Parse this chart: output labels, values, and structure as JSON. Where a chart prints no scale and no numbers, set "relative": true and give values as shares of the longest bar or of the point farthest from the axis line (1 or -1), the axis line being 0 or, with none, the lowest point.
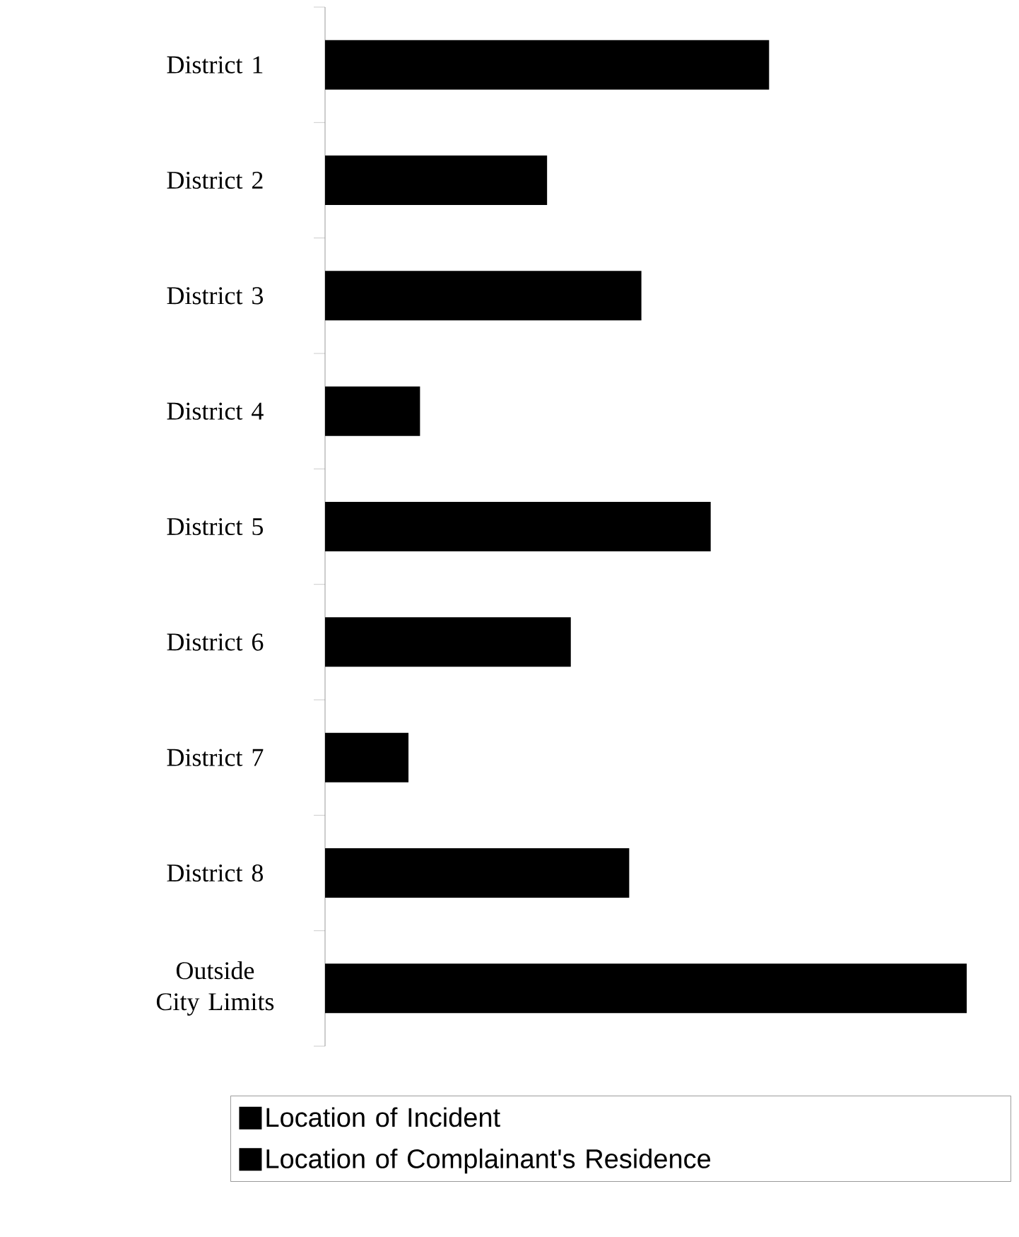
{
  "chart_data": {
    "type": "bar",
    "orientation": "horizontal",
    "relative": true,
    "categories": [
      "District 1",
      "District 2",
      "District 3",
      "District 4",
      "District 5",
      "District 6",
      "District 7",
      "District 8",
      "Outside City Limits"
    ],
    "series": [
      {
        "name": "Location of Incident",
        "color": "#000000",
        "values": [
          null,
          null,
          null,
          null,
          null,
          null,
          null,
          null,
          null
        ]
      },
      {
        "name": "Location of Complainant's Residence",
        "color": "#000000",
        "values": [
          0.692,
          0.346,
          0.493,
          0.148,
          0.601,
          0.383,
          0.13,
          0.474,
          1
        ]
      }
    ],
    "legend": "bottom"
  }
}
